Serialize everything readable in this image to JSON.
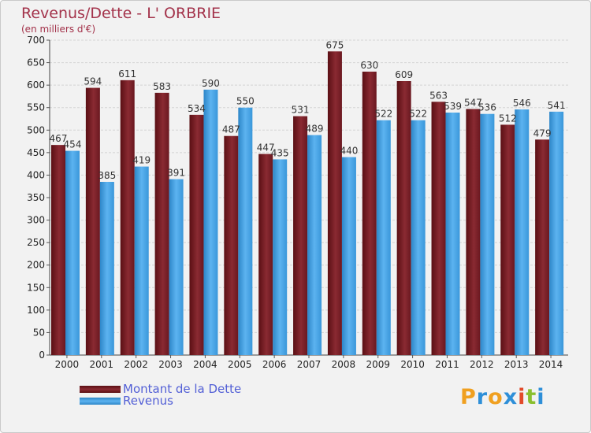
{
  "header": {
    "title": "Revenus/Dette - L' ORBRIE",
    "subtitle": "(en milliers d'€)"
  },
  "legend": {
    "debt_label": "Montant de la Dette",
    "revenue_label": "Revenus"
  },
  "logo": {
    "letters": [
      "P",
      "r",
      "o",
      "x",
      "i",
      "t",
      "i"
    ],
    "colors": [
      "#f0a020",
      "#2e8fd8",
      "#f0a020",
      "#2e8fd8",
      "#e24a2a",
      "#8abf2f",
      "#2e8fd8"
    ]
  },
  "colors": {
    "debt": "#7a1f26",
    "revenue": "#3da0e6",
    "title": "#a3324a",
    "legend_text": "#5360d6"
  },
  "chart_data": {
    "type": "bar",
    "title": "Revenus/Dette - L' ORBRIE",
    "subtitle": "(en milliers d'€)",
    "categories": [
      "2000",
      "2001",
      "2002",
      "2003",
      "2004",
      "2005",
      "2006",
      "2007",
      "2008",
      "2009",
      "2010",
      "2011",
      "2012",
      "2013",
      "2014"
    ],
    "series": [
      {
        "name": "Montant de la Dette",
        "values": [
          467,
          594,
          611,
          583,
          534,
          487,
          447,
          531,
          675,
          630,
          609,
          563,
          547,
          512,
          479
        ]
      },
      {
        "name": "Revenus",
        "values": [
          454,
          385,
          419,
          391,
          590,
          550,
          435,
          489,
          440,
          522,
          522,
          539,
          536,
          546,
          541
        ]
      }
    ],
    "ylim": [
      0,
      700
    ],
    "yticks": [
      0,
      50,
      100,
      150,
      200,
      250,
      300,
      350,
      400,
      450,
      500,
      550,
      600,
      650,
      700
    ],
    "grid": true,
    "legend_position": "bottom-left"
  }
}
